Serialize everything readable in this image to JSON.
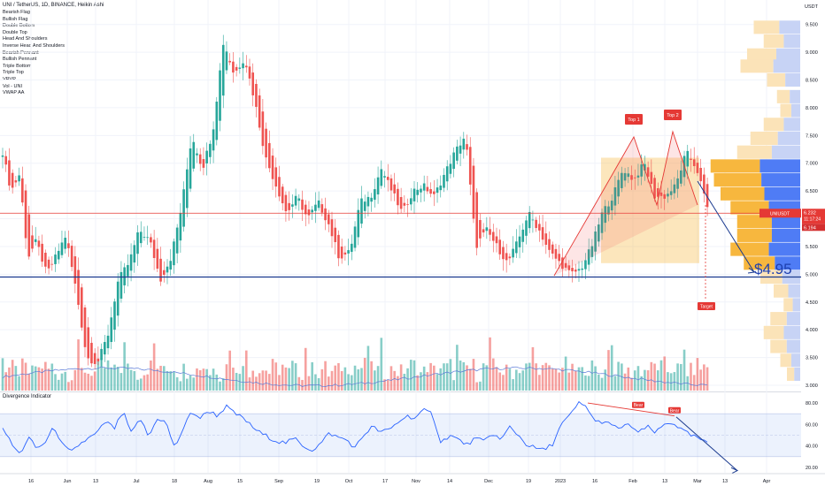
{
  "header": {
    "title": "UNI / TetherUS, 1D, BINANCE, Heikin Ashi",
    "currency": "USDT"
  },
  "indicators": [
    "Bearish Flag",
    "Bullish Flag",
    "Double Bottom",
    "Double Top",
    "Head And Shoulders",
    "Inverse Head And Shoulders",
    "Bearish Pennant",
    "Bullish Pennant",
    "Triple Bottom",
    "Triple Top",
    "VRVP",
    "Vol - UNI",
    "VWAP AA"
  ],
  "oscillator": {
    "title": "Divergence Indicator"
  },
  "annotations": {
    "top1": "Top 1",
    "top2": "Top 2",
    "target": "Target",
    "price_target": "$4.95",
    "bear1": "Bear",
    "bear2": "Bear"
  },
  "price_labels": {
    "symbol": "UNIUSDT",
    "price": "6.232",
    "timer": "11:17:24",
    "vwap": "6.194"
  },
  "y_axis_ticks": [
    "9.500",
    "9.000",
    "8.500",
    "8.000",
    "7.500",
    "7.000",
    "6.500",
    "6.000",
    "5.500",
    "5.000",
    "4.500",
    "4.000",
    "3.500",
    "3.000"
  ],
  "osc_ticks": [
    "80.00",
    "60.00",
    "40.00",
    "20.00"
  ],
  "x_axis_ticks": [
    "16",
    "Jun",
    "13",
    "Jul",
    "18",
    "Aug",
    "15",
    "Sep",
    "19",
    "Oct",
    "17",
    "Nov",
    "14",
    "Dec",
    "19",
    "2023",
    "16",
    "Feb",
    "13",
    "Mar",
    "13",
    "Apr"
  ],
  "colors": {
    "up": "#26a69a",
    "down": "#ef5350",
    "trend_blue": "#1a3a8f",
    "vwap": "#5b7ad8",
    "red_line": "#e53935",
    "vrvp_blue": "#4f7cf5",
    "vrvp_orange": "#f7b73e"
  },
  "chart_data": {
    "type": "candlestick",
    "title": "UNI / TetherUS, 1D, BINANCE, Heikin Ashi",
    "price_segments": [
      [
        0,
        7.2
      ],
      [
        8,
        6.5
      ],
      [
        16,
        6.8
      ],
      [
        24,
        5.3
      ],
      [
        32,
        5.6
      ],
      [
        42,
        5.0
      ],
      [
        50,
        5.3
      ],
      [
        60,
        5.7
      ],
      [
        70,
        4.7
      ],
      [
        80,
        3.5
      ],
      [
        90,
        3.4
      ],
      [
        100,
        3.9
      ],
      [
        110,
        4.9
      ],
      [
        120,
        5.2
      ],
      [
        130,
        5.8
      ],
      [
        140,
        5.6
      ],
      [
        150,
        4.9
      ],
      [
        160,
        5.3
      ],
      [
        170,
        6.2
      ],
      [
        180,
        7.5
      ],
      [
        190,
        6.9
      ],
      [
        200,
        7.6
      ],
      [
        210,
        9.2
      ],
      [
        220,
        8.6
      ],
      [
        230,
        8.9
      ],
      [
        240,
        8.1
      ],
      [
        250,
        7.1
      ],
      [
        260,
        6.6
      ],
      [
        270,
        6.1
      ],
      [
        280,
        6.4
      ],
      [
        290,
        6.0
      ],
      [
        300,
        6.3
      ],
      [
        310,
        5.9
      ],
      [
        320,
        5.3
      ],
      [
        330,
        5.4
      ],
      [
        340,
        6.3
      ],
      [
        350,
        6.4
      ],
      [
        360,
        6.9
      ],
      [
        370,
        6.5
      ],
      [
        380,
        6.1
      ],
      [
        390,
        6.5
      ],
      [
        400,
        6.6
      ],
      [
        410,
        6.4
      ],
      [
        420,
        6.8
      ],
      [
        430,
        7.2
      ],
      [
        440,
        7.5
      ],
      [
        450,
        5.5
      ],
      [
        460,
        5.8
      ],
      [
        470,
        5.5
      ],
      [
        480,
        5.2
      ],
      [
        490,
        5.6
      ],
      [
        500,
        6.1
      ],
      [
        510,
        5.8
      ],
      [
        520,
        5.4
      ],
      [
        530,
        5.2
      ],
      [
        540,
        5.0
      ],
      [
        550,
        5.1
      ],
      [
        560,
        5.5
      ],
      [
        570,
        6.1
      ],
      [
        580,
        6.4
      ],
      [
        590,
        6.9
      ],
      [
        600,
        6.7
      ],
      [
        610,
        7.0
      ],
      [
        620,
        6.4
      ],
      [
        630,
        6.4
      ],
      [
        640,
        6.6
      ],
      [
        650,
        7.2
      ],
      [
        660,
        6.9
      ],
      [
        670,
        6.2
      ]
    ],
    "oscillator_segments": [
      [
        0,
        58
      ],
      [
        8,
        42
      ],
      [
        16,
        32
      ],
      [
        24,
        48
      ],
      [
        32,
        37
      ],
      [
        40,
        44
      ],
      [
        48,
        58
      ],
      [
        56,
        40
      ],
      [
        64,
        34
      ],
      [
        72,
        42
      ],
      [
        80,
        47
      ],
      [
        88,
        52
      ],
      [
        96,
        63
      ],
      [
        104,
        56
      ],
      [
        112,
        72
      ],
      [
        120,
        51
      ],
      [
        128,
        66
      ],
      [
        136,
        48
      ],
      [
        144,
        66
      ],
      [
        152,
        62
      ],
      [
        160,
        38
      ],
      [
        168,
        56
      ],
      [
        176,
        72
      ],
      [
        184,
        66
      ],
      [
        192,
        73
      ],
      [
        200,
        68
      ],
      [
        208,
        77
      ],
      [
        216,
        70
      ],
      [
        224,
        66
      ],
      [
        232,
        58
      ],
      [
        240,
        52
      ],
      [
        248,
        48
      ],
      [
        256,
        44
      ],
      [
        264,
        43
      ],
      [
        272,
        47
      ],
      [
        280,
        40
      ],
      [
        288,
        36
      ],
      [
        296,
        42
      ],
      [
        304,
        52
      ],
      [
        312,
        48
      ],
      [
        320,
        46
      ],
      [
        328,
        38
      ],
      [
        336,
        50
      ],
      [
        344,
        58
      ],
      [
        352,
        53
      ],
      [
        360,
        55
      ],
      [
        368,
        62
      ],
      [
        376,
        68
      ],
      [
        384,
        66
      ],
      [
        392,
        73
      ],
      [
        400,
        70
      ],
      [
        408,
        43
      ],
      [
        416,
        50
      ],
      [
        424,
        46
      ],
      [
        432,
        41
      ],
      [
        440,
        47
      ],
      [
        448,
        44
      ],
      [
        456,
        52
      ],
      [
        464,
        45
      ],
      [
        472,
        58
      ],
      [
        480,
        50
      ],
      [
        488,
        41
      ],
      [
        496,
        38
      ],
      [
        504,
        36
      ],
      [
        512,
        42
      ],
      [
        520,
        60
      ],
      [
        528,
        68
      ],
      [
        536,
        80
      ],
      [
        544,
        76
      ],
      [
        552,
        62
      ],
      [
        560,
        63
      ],
      [
        568,
        58
      ],
      [
        576,
        57
      ],
      [
        584,
        60
      ],
      [
        592,
        52
      ],
      [
        600,
        58
      ],
      [
        608,
        52
      ],
      [
        616,
        60
      ],
      [
        624,
        62
      ],
      [
        632,
        55
      ],
      [
        640,
        50
      ],
      [
        648,
        47
      ],
      [
        656,
        42
      ]
    ],
    "horizontal_levels": {
      "support": 4.95,
      "red_line": 6.1
    },
    "target": 4.95,
    "tops": [
      {
        "label": "Top 1",
        "price": 7.5
      },
      {
        "label": "Top 2",
        "price": 7.6
      }
    ],
    "osc_range": [
      15,
      85
    ],
    "price_range": [
      3.0,
      9.75
    ]
  }
}
